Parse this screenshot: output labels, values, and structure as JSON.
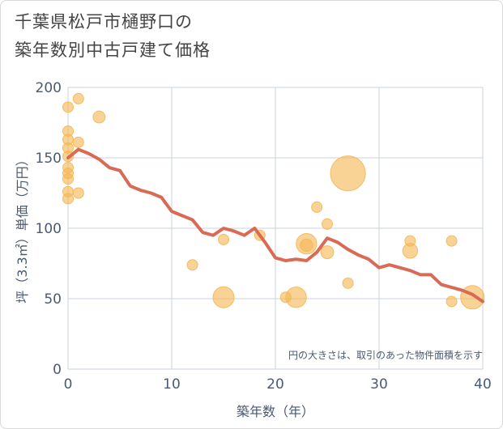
{
  "title_lines": [
    "千葉県松戸市樋野口の",
    "築年数別中古戸建て価格"
  ],
  "chart_data": {
    "type": "scatter",
    "title": "千葉県松戸市樋野口の築年数別中古戸建て価格",
    "xlabel": "築年数（年）",
    "ylabel": "坪（3.3㎡）単価（万円）",
    "xlim": [
      0,
      40
    ],
    "ylim": [
      0,
      200
    ],
    "x_ticks": [
      0,
      10,
      20,
      30,
      40
    ],
    "y_ticks": [
      0,
      50,
      100,
      150,
      200
    ],
    "grid": true,
    "annotation": "円の大きさは、取引のあった物件面積を示す",
    "colors": {
      "bubble": "#f5b654",
      "line": "#d96a55",
      "grid": "#c9d3e0",
      "text": "#4a5a70"
    },
    "bubbles": [
      {
        "x": 0,
        "y": 186,
        "size": 1
      },
      {
        "x": 0,
        "y": 169,
        "size": 1
      },
      {
        "x": 0,
        "y": 163,
        "size": 1
      },
      {
        "x": 0,
        "y": 157,
        "size": 1
      },
      {
        "x": 0,
        "y": 151,
        "size": 1
      },
      {
        "x": 0,
        "y": 143,
        "size": 1
      },
      {
        "x": 0,
        "y": 139,
        "size": 1
      },
      {
        "x": 0,
        "y": 135,
        "size": 1
      },
      {
        "x": 0,
        "y": 126,
        "size": 1
      },
      {
        "x": 0,
        "y": 121,
        "size": 1
      },
      {
        "x": 1,
        "y": 192,
        "size": 1
      },
      {
        "x": 1,
        "y": 161,
        "size": 1
      },
      {
        "x": 1,
        "y": 125,
        "size": 1
      },
      {
        "x": 3,
        "y": 179,
        "size": 1.3
      },
      {
        "x": 12,
        "y": 74,
        "size": 1
      },
      {
        "x": 15,
        "y": 92,
        "size": 1
      },
      {
        "x": 15,
        "y": 51,
        "size": 4
      },
      {
        "x": 18.5,
        "y": 95,
        "size": 1
      },
      {
        "x": 21,
        "y": 51,
        "size": 1
      },
      {
        "x": 22,
        "y": 51,
        "size": 3.8
      },
      {
        "x": 23,
        "y": 89,
        "size": 3.8
      },
      {
        "x": 23,
        "y": 88,
        "size": 1.4
      },
      {
        "x": 24,
        "y": 115,
        "size": 1
      },
      {
        "x": 25,
        "y": 103,
        "size": 1
      },
      {
        "x": 25,
        "y": 83,
        "size": 1.5
      },
      {
        "x": 27,
        "y": 139,
        "size": 11
      },
      {
        "x": 27,
        "y": 61,
        "size": 1
      },
      {
        "x": 33,
        "y": 91,
        "size": 1
      },
      {
        "x": 33,
        "y": 84,
        "size": 2
      },
      {
        "x": 37,
        "y": 91,
        "size": 1
      },
      {
        "x": 37,
        "y": 48,
        "size": 1
      },
      {
        "x": 39,
        "y": 51,
        "size": 5
      }
    ],
    "trend": {
      "x": [
        0,
        1,
        2,
        3,
        4,
        5,
        6,
        7,
        8,
        9,
        10,
        11,
        12,
        13,
        14,
        15,
        16,
        17,
        18,
        19,
        20,
        21,
        22,
        23,
        24,
        25,
        26,
        27,
        28,
        29,
        30,
        31,
        32,
        33,
        34,
        35,
        36,
        37,
        38,
        39,
        40
      ],
      "y": [
        150,
        156,
        153,
        149,
        143,
        141,
        130,
        127,
        125,
        122,
        112,
        109,
        106,
        97,
        95,
        100,
        98,
        95,
        100,
        90,
        79,
        77,
        78,
        77,
        83,
        93,
        90,
        85,
        81,
        78,
        72,
        74,
        72,
        70,
        67,
        67,
        60,
        58,
        56,
        53,
        48
      ]
    }
  }
}
